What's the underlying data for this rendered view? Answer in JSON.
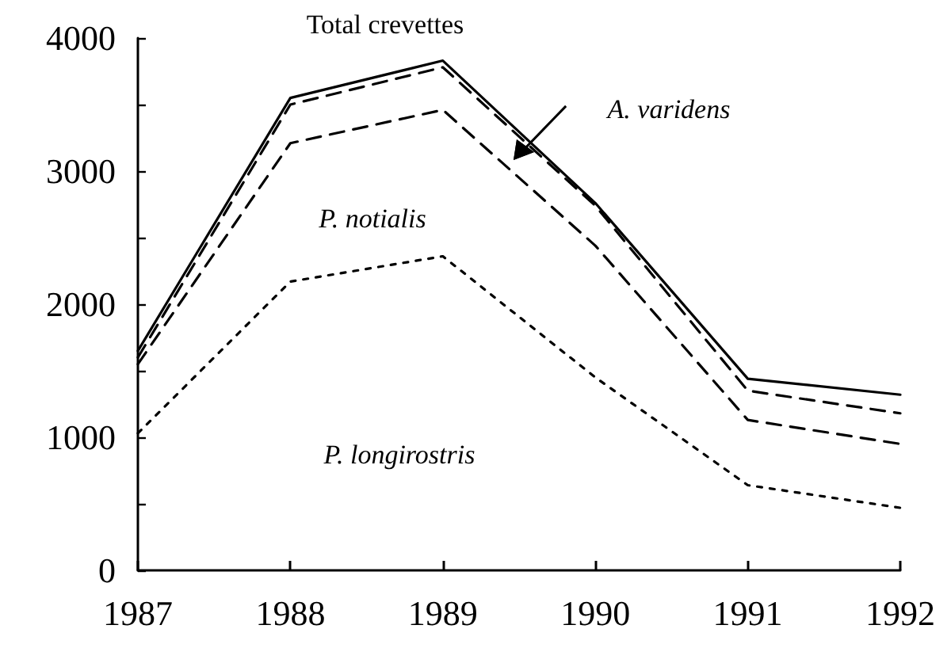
{
  "chart_data": {
    "type": "line",
    "x": [
      1987,
      1988,
      1989,
      1990,
      1991,
      1992
    ],
    "series": [
      {
        "color": "#000000",
        "line_style": "solid",
        "values": [
          1650,
          3550,
          3830,
          2760,
          1440,
          1320
        ]
      },
      {
        "color": "#000000",
        "line_style": "dashed",
        "values": [
          1600,
          3500,
          3780,
          2740,
          1350,
          1180
        ]
      },
      {
        "color": "#000000",
        "line_style": "dashed",
        "values": [
          1550,
          3210,
          3460,
          2440,
          1130,
          950
        ]
      },
      {
        "color": "#000000",
        "line_style": "dotted",
        "values": [
          1030,
          2170,
          2360,
          1450,
          640,
          470
        ]
      }
    ],
    "xlim": [
      1987,
      1992
    ],
    "xticks": [
      1987,
      1988,
      1989,
      1990,
      1991,
      1992
    ],
    "ylim": [
      0,
      4000
    ],
    "yticks": [
      0,
      {
        "value": 500,
        "label": null
      },
      1000,
      {
        "value": 1500,
        "label": null
      },
      2000,
      {
        "value": 2500,
        "label": null
      },
      3000,
      {
        "value": 3500,
        "label": null
      },
      4000
    ],
    "grid": false,
    "marker": "none",
    "annotations": [
      "Total crevettes",
      "A. varidens",
      "P. notialis",
      "P. longirostris"
    ]
  }
}
